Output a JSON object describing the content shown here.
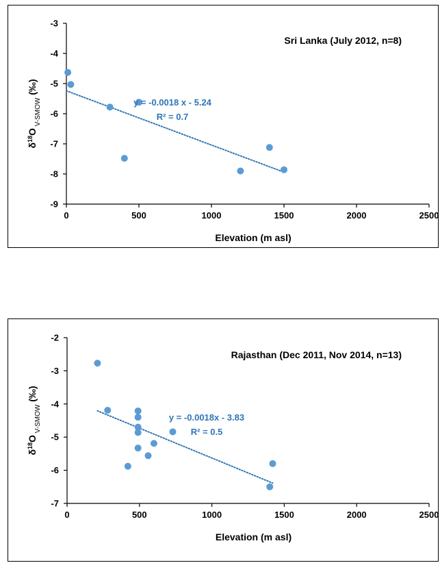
{
  "chart_data": [
    {
      "type": "scatter",
      "title": "Sri Lanka (July 2012, n=8)",
      "xlabel": "Elevation (m asl)",
      "ylabel": {
        "main": "δ",
        "sup": "18",
        "element": "O",
        "sub": " V-SMOW",
        "units": " (‰)"
      },
      "xlim": [
        0,
        2500
      ],
      "ylim": [
        -9,
        -3
      ],
      "xticks": [
        "0",
        "500",
        "1000",
        "1500",
        "2000",
        "2500"
      ],
      "yticks": [
        "-9",
        "-8",
        "-7",
        "-6",
        "-5",
        "-4",
        "-3"
      ],
      "grid": false,
      "series": [
        {
          "x": [
            10,
            30,
            300,
            400,
            500,
            1200,
            1400,
            1500
          ],
          "y": [
            -4.63,
            -5.03,
            -5.78,
            -7.48,
            -5.62,
            -7.9,
            -7.12,
            -7.86
          ],
          "color": "#5b9bd5"
        }
      ],
      "trendline": {
        "slope": -0.0018,
        "intercept": -5.24,
        "x_range": [
          0,
          1500
        ],
        "color": "#2e75b6",
        "style": "dotted"
      },
      "annotations": [
        "y = -0.0018 x - 5.24",
        "R² = 0.7"
      ]
    },
    {
      "type": "scatter",
      "title": "Rajasthan (Dec 2011, Nov 2014, n=13)",
      "xlabel": "Elevation (m asl)",
      "ylabel": {
        "main": "δ",
        "sup": "18",
        "element": "O",
        "sub": " V-SMOW",
        "units": " (‰)"
      },
      "xlim": [
        0,
        2500
      ],
      "ylim": [
        -7,
        -2
      ],
      "xticks": [
        "0",
        "500",
        "1000",
        "1500",
        "2000",
        "2500"
      ],
      "yticks": [
        "-7",
        "-6",
        "-5",
        "-4",
        "-3",
        "-2"
      ],
      "grid": false,
      "series": [
        {
          "x": [
            210,
            280,
            420,
            490,
            490,
            490,
            490,
            490,
            560,
            600,
            730,
            1400,
            1420
          ],
          "y": [
            -2.77,
            -4.19,
            -5.88,
            -4.21,
            -4.4,
            -4.7,
            -4.86,
            -5.33,
            -5.56,
            -5.19,
            -4.84,
            -6.5,
            -5.8
          ],
          "color": "#5b9bd5"
        }
      ],
      "trendline": {
        "slope": -0.0018,
        "intercept": -3.83,
        "x_range": [
          210,
          1420
        ],
        "color": "#2e75b6",
        "style": "dotted"
      },
      "annotations": [
        "y = -0.0018x - 3.83",
        "R² = 0.5"
      ]
    }
  ]
}
